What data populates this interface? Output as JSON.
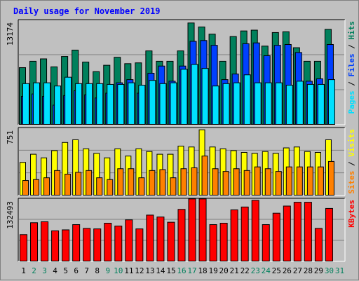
{
  "title": "Daily usage for November 2019",
  "colors": {
    "background": "#c0c0c0",
    "title": "#0000ff",
    "hits": "#00805c",
    "files": "#0040ff",
    "pages": "#00e0ff",
    "visits": "#ffff00",
    "sites": "#ff8000",
    "kbytes": "#ff0000",
    "weekend_label": "#00805c",
    "weekday_label": "#000000"
  },
  "chart_data": [
    {
      "type": "bar",
      "ymax_label": "13174",
      "ylim": [
        0,
        13174
      ],
      "legend": [
        {
          "text": "Pages",
          "color": "#00e0ff"
        },
        {
          "text": " / ",
          "color": "#000000"
        },
        {
          "text": "Files",
          "color": "#0040ff"
        },
        {
          "text": " / ",
          "color": "#000000"
        },
        {
          "text": "Hits",
          "color": "#00805c"
        }
      ],
      "categories": [
        "1",
        "2",
        "3",
        "4",
        "5",
        "6",
        "7",
        "8",
        "9",
        "10",
        "11",
        "12",
        "13",
        "14",
        "15",
        "16",
        "17",
        "18",
        "19",
        "20",
        "21",
        "22",
        "23",
        "24",
        "25",
        "26",
        "27",
        "28",
        "29",
        "30",
        "31"
      ],
      "series": [
        {
          "name": "Hits",
          "values": [
            7200,
            8000,
            8300,
            7300,
            8600,
            9400,
            7900,
            6700,
            7500,
            8500,
            7700,
            7800,
            9300,
            8000,
            8000,
            9300,
            12800,
            12300,
            11400,
            8000,
            11100,
            11800,
            11900,
            9900,
            11600,
            11700,
            9700,
            8000,
            8000,
            12000,
            0
          ]
        },
        {
          "name": "Files",
          "values": [
            3600,
            3900,
            3600,
            2500,
            3700,
            4300,
            3800,
            3400,
            4000,
            5300,
            5700,
            4000,
            6500,
            7400,
            5500,
            7400,
            10500,
            10600,
            10000,
            5700,
            6400,
            10200,
            10300,
            8700,
            10000,
            10100,
            9100,
            5500,
            5800,
            10100,
            0
          ]
        },
        {
          "name": "Pages",
          "values": [
            5200,
            5300,
            5300,
            4900,
            6000,
            5200,
            5200,
            5200,
            5100,
            5100,
            5300,
            5000,
            5600,
            5200,
            5300,
            7000,
            7600,
            7100,
            4900,
            5200,
            5300,
            6300,
            5300,
            5300,
            5300,
            5000,
            5500,
            5100,
            5100,
            5700,
            0
          ]
        }
      ]
    },
    {
      "type": "bar",
      "ymax_label": "751",
      "ylim": [
        0,
        751
      ],
      "legend": [
        {
          "text": "Sites",
          "color": "#ff8000"
        },
        {
          "text": " / ",
          "color": "#000000"
        },
        {
          "text": "Visits",
          "color": "#ffff00"
        }
      ],
      "categories": [
        "1",
        "2",
        "3",
        "4",
        "5",
        "6",
        "7",
        "8",
        "9",
        "10",
        "11",
        "12",
        "13",
        "14",
        "15",
        "16",
        "17",
        "18",
        "19",
        "20",
        "21",
        "22",
        "23",
        "24",
        "25",
        "26",
        "27",
        "28",
        "29",
        "30",
        "31"
      ],
      "series": [
        {
          "name": "Visits",
          "values": [
            370,
            460,
            420,
            500,
            590,
            620,
            520,
            470,
            420,
            520,
            440,
            520,
            490,
            460,
            460,
            550,
            540,
            730,
            540,
            520,
            500,
            480,
            470,
            490,
            470,
            530,
            540,
            490,
            480,
            620,
            0
          ]
        },
        {
          "name": "Sites",
          "values": [
            170,
            180,
            200,
            280,
            240,
            260,
            280,
            200,
            180,
            300,
            300,
            200,
            280,
            290,
            200,
            300,
            310,
            440,
            300,
            270,
            300,
            280,
            320,
            300,
            270,
            320,
            320,
            320,
            320,
            380,
            0
          ]
        }
      ]
    },
    {
      "type": "bar",
      "ymax_label": "132493",
      "ylim": [
        0,
        132493
      ],
      "legend": [
        {
          "text": "KBytes",
          "color": "#ff0000"
        }
      ],
      "categories": [
        "1",
        "2",
        "3",
        "4",
        "5",
        "6",
        "7",
        "8",
        "9",
        "10",
        "11",
        "12",
        "13",
        "14",
        "15",
        "16",
        "17",
        "18",
        "19",
        "20",
        "21",
        "22",
        "23",
        "24",
        "25",
        "26",
        "27",
        "28",
        "29",
        "30",
        "31"
      ],
      "series": [
        {
          "name": "KBytes",
          "values": [
            57000,
            82000,
            84000,
            65000,
            67000,
            78000,
            70000,
            69000,
            81000,
            75000,
            88000,
            69000,
            98000,
            94000,
            83000,
            110000,
            132000,
            132000,
            78000,
            81000,
            109000,
            115000,
            129000,
            78000,
            102000,
            117000,
            125000,
            125000,
            70000,
            112000,
            0
          ]
        }
      ]
    }
  ]
}
